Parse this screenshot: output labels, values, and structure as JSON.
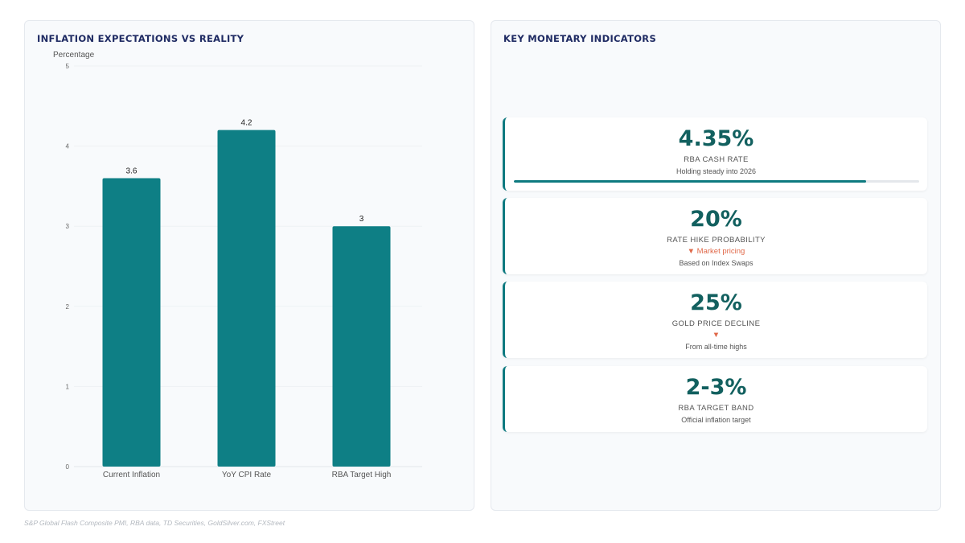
{
  "chart_panel": {
    "title": "INFLATION EXPECTATIONS VS REALITY"
  },
  "chart_data": {
    "type": "bar",
    "title": "INFLATION EXPECTATIONS VS REALITY",
    "ylabel": "Percentage",
    "xlabel": "",
    "categories": [
      "Current Inflation",
      "YoY CPI Rate",
      "RBA Target High"
    ],
    "values": [
      3.6,
      4.2,
      3
    ],
    "value_labels": [
      "3.6",
      "4.2",
      "3"
    ],
    "ylim": [
      0,
      5
    ],
    "yticks": [
      0,
      1,
      2,
      3,
      4,
      5
    ],
    "grid": true,
    "legend": "none",
    "bar_color": "#0e7f85"
  },
  "kpi_panel": {
    "title": "KEY MONETARY INDICATORS",
    "cards": [
      {
        "value": "4.35%",
        "label": "RBA CASH RATE",
        "trend": "",
        "sub": "Holding steady into 2026",
        "progress": 0.87
      },
      {
        "value": "20%",
        "label": "RATE HIKE PROBABILITY",
        "trend": "▼ Market pricing",
        "sub": "Based on Index Swaps"
      },
      {
        "value": "25%",
        "label": "GOLD PRICE DECLINE",
        "trend": "▼",
        "sub": "From all-time highs"
      },
      {
        "value": "2-3%",
        "label": "RBA TARGET BAND",
        "trend": "",
        "sub": "Official inflation target"
      }
    ]
  },
  "colors": {
    "accent": "#0e7a80",
    "value_text": "#12605f",
    "title": "#1f2b63",
    "trend_down": "#e0694a"
  },
  "source": "S&P Global Flash Composite PMI, RBA data, TD Securities, GoldSilver.com, FXStreet"
}
